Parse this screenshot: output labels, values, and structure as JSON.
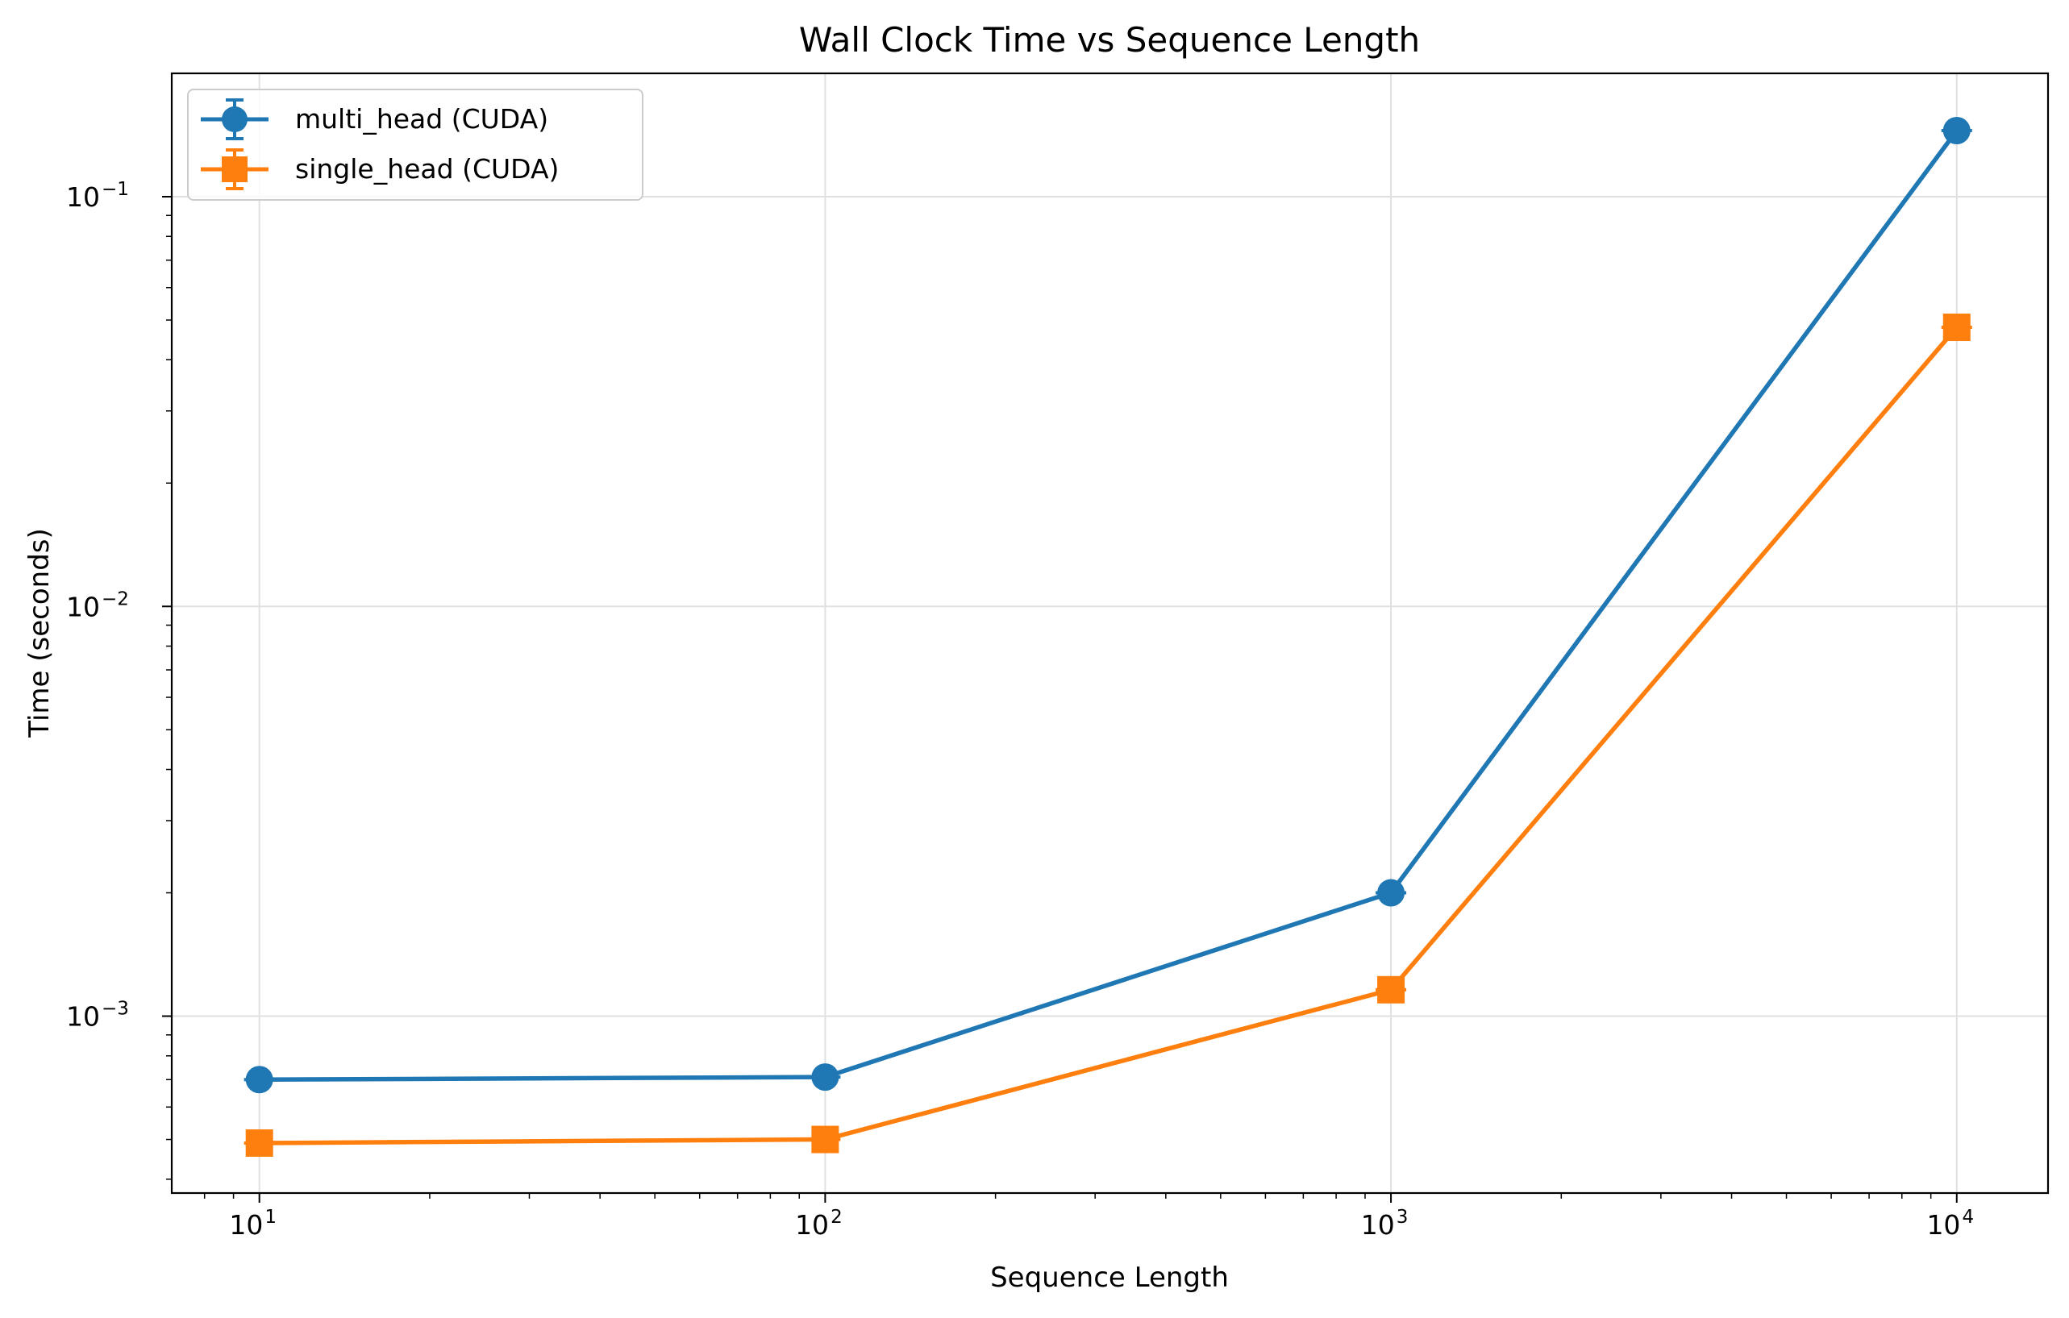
{
  "chart_data": {
    "type": "line",
    "title": "Wall Clock Time vs Sequence Length",
    "xlabel": "Sequence Length",
    "ylabel": "Time (seconds)",
    "x_scale": "log",
    "y_scale": "log",
    "xlim": [
      7,
      14500
    ],
    "ylim": [
      0.00037,
      0.2
    ],
    "grid": true,
    "legend_position": "top-left",
    "x_ticks": [
      {
        "value": 10,
        "base": "10",
        "exp": "1"
      },
      {
        "value": 100,
        "base": "10",
        "exp": "2"
      },
      {
        "value": 1000,
        "base": "10",
        "exp": "3"
      },
      {
        "value": 10000,
        "base": "10",
        "exp": "4"
      }
    ],
    "y_ticks": [
      {
        "value": 0.001,
        "base": "10",
        "exp": "−3"
      },
      {
        "value": 0.01,
        "base": "10",
        "exp": "−2"
      },
      {
        "value": 0.1,
        "base": "10",
        "exp": "−1"
      }
    ],
    "x": [
      10,
      100,
      1000,
      10000
    ],
    "series": [
      {
        "name": "multi_head (CUDA)",
        "marker": "circle",
        "color": "#1f77b4",
        "values": [
          0.0007,
          0.00071,
          0.002,
          0.145
        ]
      },
      {
        "name": "single_head (CUDA)",
        "marker": "square",
        "color": "#ff7f0e",
        "values": [
          0.00049,
          0.0005,
          0.00116,
          0.048
        ]
      }
    ]
  }
}
